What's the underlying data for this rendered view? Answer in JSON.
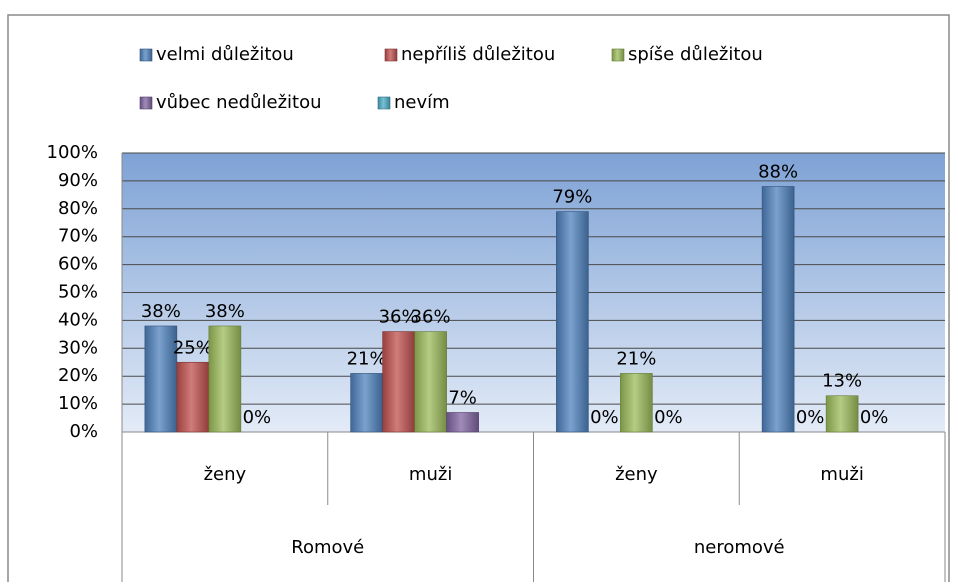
{
  "chart_data": {
    "type": "bar",
    "categories": [
      "ženy",
      "muži",
      "ženy",
      "muži"
    ],
    "category_groups": [
      "Romové",
      "neromové"
    ],
    "series": [
      {
        "name": "velmi důležitou",
        "color": "#4f81bd",
        "values": [
          38,
          21,
          79,
          88
        ],
        "value_labels": [
          "38%",
          "21%",
          "79%",
          "88%"
        ]
      },
      {
        "name": "nepříliš důležitou",
        "color": "#c0504d",
        "values": [
          25,
          36,
          0,
          0
        ],
        "value_labels": [
          "25%",
          "36%",
          "0%",
          "0%"
        ]
      },
      {
        "name": "spíše důležitou",
        "color": "#9bbb59",
        "values": [
          38,
          36,
          21,
          13
        ],
        "value_labels": [
          "38%",
          "36%",
          "21%",
          "13%"
        ]
      },
      {
        "name": "vůbec nedůležitou",
        "color": "#8064a2",
        "values": [
          0,
          7,
          0,
          0
        ],
        "value_labels": [
          "0%",
          "7%",
          "0%",
          "0%"
        ]
      },
      {
        "name": "nevím",
        "color": "#4bacc6",
        "values": [
          null,
          null,
          null,
          null
        ],
        "value_labels": [
          null,
          null,
          null,
          null
        ]
      }
    ],
    "ylim": [
      0,
      100
    ],
    "yticks": [
      {
        "value": 0,
        "label": "0%"
      },
      {
        "value": 10,
        "label": "10%"
      },
      {
        "value": 20,
        "label": "20%"
      },
      {
        "value": 30,
        "label": "30%"
      },
      {
        "value": 40,
        "label": "40%"
      },
      {
        "value": 50,
        "label": "50%"
      },
      {
        "value": 60,
        "label": "60%"
      },
      {
        "value": 70,
        "label": "70%"
      },
      {
        "value": 80,
        "label": "80%"
      },
      {
        "value": 90,
        "label": "90%"
      },
      {
        "value": 100,
        "label": "100%"
      }
    ],
    "grid": true
  }
}
